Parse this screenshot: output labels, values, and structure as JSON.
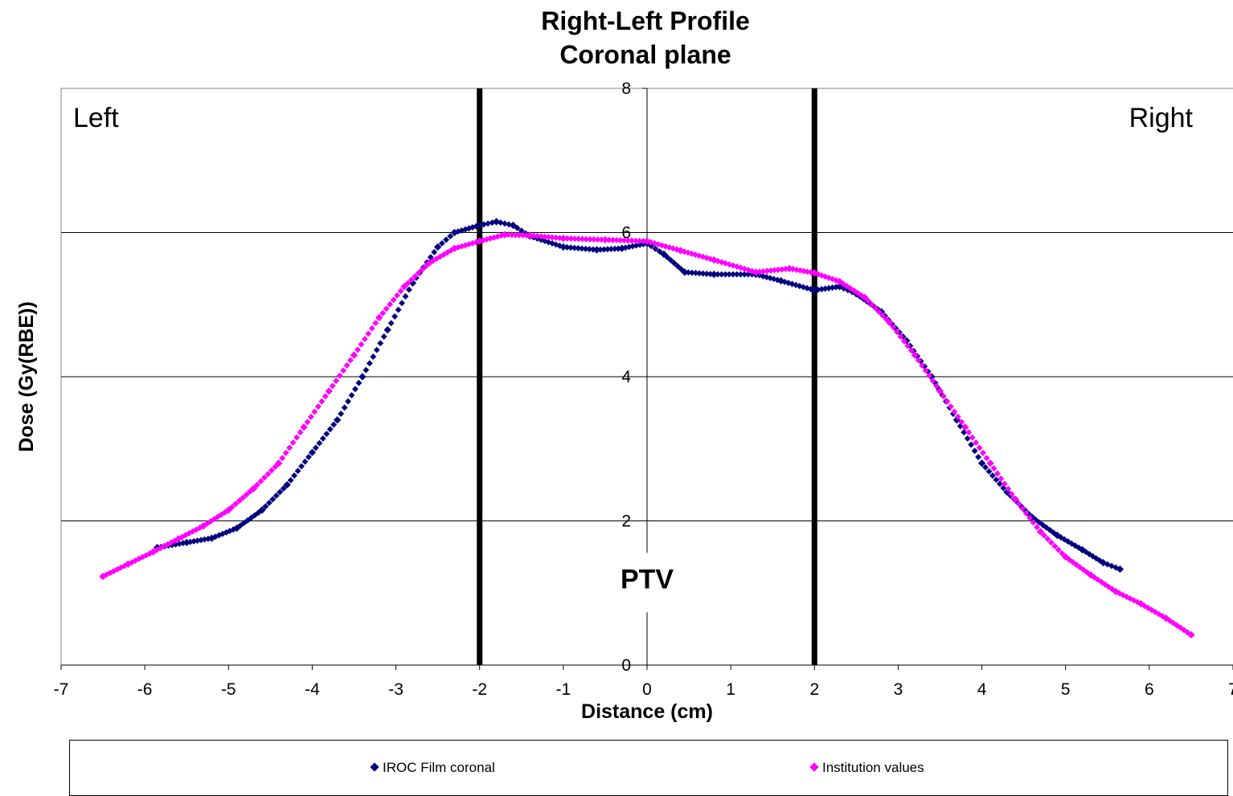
{
  "chart_data": {
    "type": "scatter",
    "title": "Right-Left Profile",
    "subtitle": "Coronal plane",
    "xlabel": "Distance (cm)",
    "ylabel": "Dose (Gy(RBE))",
    "xlim": [
      -7,
      7
    ],
    "ylim": [
      0,
      8
    ],
    "x_ticks": [
      "-7",
      "-6",
      "-5",
      "-4",
      "-3",
      "-2",
      "-1",
      "0",
      "1",
      "2",
      "3",
      "4",
      "5",
      "6",
      "7"
    ],
    "y_ticks": [
      "0",
      "2",
      "4",
      "6",
      "8"
    ],
    "grid": "horizontal",
    "legend_position": "bottom",
    "annotations": {
      "left": "Left",
      "right": "Right",
      "ptv": "PTV"
    },
    "reference_lines_x": [
      -2,
      2
    ],
    "series": [
      {
        "name": "IROC Film coronal",
        "color": "#00007f",
        "points": [
          [
            -5.85,
            1.63
          ],
          [
            -5.5,
            1.7
          ],
          [
            -5.2,
            1.76
          ],
          [
            -4.9,
            1.9
          ],
          [
            -4.6,
            2.15
          ],
          [
            -4.3,
            2.5
          ],
          [
            -4.0,
            2.95
          ],
          [
            -3.7,
            3.4
          ],
          [
            -3.4,
            4.0
          ],
          [
            -3.1,
            4.65
          ],
          [
            -2.8,
            5.3
          ],
          [
            -2.5,
            5.8
          ],
          [
            -2.3,
            6.0
          ],
          [
            -2.0,
            6.1
          ],
          [
            -1.8,
            6.15
          ],
          [
            -1.6,
            6.1
          ],
          [
            -1.4,
            5.95
          ],
          [
            -1.0,
            5.8
          ],
          [
            -0.6,
            5.76
          ],
          [
            -0.3,
            5.78
          ],
          [
            0.0,
            5.85
          ],
          [
            0.2,
            5.7
          ],
          [
            0.45,
            5.45
          ],
          [
            0.8,
            5.42
          ],
          [
            1.3,
            5.42
          ],
          [
            1.6,
            5.33
          ],
          [
            2.0,
            5.2
          ],
          [
            2.3,
            5.25
          ],
          [
            2.5,
            5.15
          ],
          [
            2.8,
            4.9
          ],
          [
            3.1,
            4.5
          ],
          [
            3.4,
            4.0
          ],
          [
            3.7,
            3.4
          ],
          [
            4.0,
            2.8
          ],
          [
            4.3,
            2.4
          ],
          [
            4.6,
            2.05
          ],
          [
            4.9,
            1.8
          ],
          [
            5.2,
            1.6
          ],
          [
            5.45,
            1.42
          ],
          [
            5.65,
            1.33
          ]
        ]
      },
      {
        "name": "Institution values",
        "color": "#ff00ff",
        "points": [
          [
            -6.5,
            1.23
          ],
          [
            -6.2,
            1.4
          ],
          [
            -5.9,
            1.57
          ],
          [
            -5.6,
            1.75
          ],
          [
            -5.3,
            1.93
          ],
          [
            -5.0,
            2.15
          ],
          [
            -4.7,
            2.45
          ],
          [
            -4.4,
            2.8
          ],
          [
            -4.1,
            3.3
          ],
          [
            -3.8,
            3.8
          ],
          [
            -3.5,
            4.3
          ],
          [
            -3.2,
            4.82
          ],
          [
            -2.9,
            5.25
          ],
          [
            -2.6,
            5.58
          ],
          [
            -2.3,
            5.78
          ],
          [
            -2.0,
            5.88
          ],
          [
            -1.7,
            5.97
          ],
          [
            -1.4,
            5.96
          ],
          [
            -1.0,
            5.92
          ],
          [
            -0.5,
            5.9
          ],
          [
            0.0,
            5.88
          ],
          [
            0.4,
            5.75
          ],
          [
            0.8,
            5.62
          ],
          [
            1.3,
            5.45
          ],
          [
            1.7,
            5.5
          ],
          [
            2.0,
            5.44
          ],
          [
            2.3,
            5.32
          ],
          [
            2.6,
            5.1
          ],
          [
            2.9,
            4.75
          ],
          [
            3.2,
            4.3
          ],
          [
            3.5,
            3.8
          ],
          [
            3.8,
            3.3
          ],
          [
            4.1,
            2.8
          ],
          [
            4.4,
            2.3
          ],
          [
            4.7,
            1.85
          ],
          [
            5.0,
            1.5
          ],
          [
            5.3,
            1.25
          ],
          [
            5.6,
            1.02
          ],
          [
            5.9,
            0.85
          ],
          [
            6.2,
            0.65
          ],
          [
            6.5,
            0.42
          ]
        ]
      }
    ]
  }
}
